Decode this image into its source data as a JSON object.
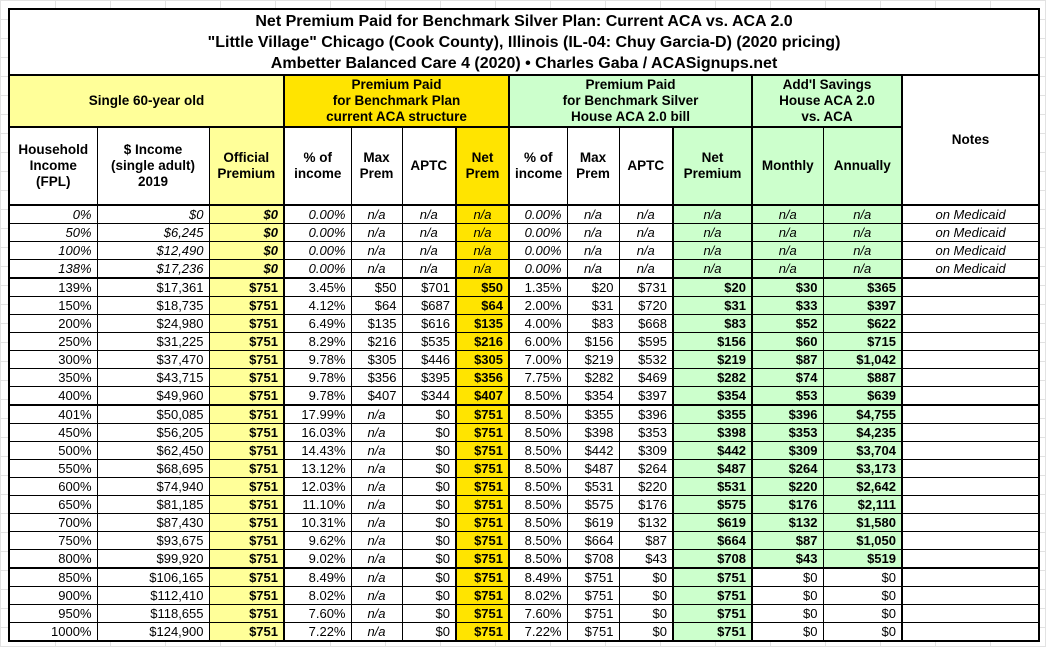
{
  "title": {
    "line1": "Net Premium Paid for Benchmark Silver Plan: Current ACA vs. ACA 2.0",
    "line2": "\"Little Village\" Chicago (Cook County), Illinois (IL-04: Chuy Garcia-D) (2020 pricing)",
    "line3": "Ambetter Balanced Care 4 (2020) • Charles Gaba / ACASignups.net"
  },
  "groups": {
    "subject": "Single 60-year old",
    "aca": "Premium Paid\nfor Benchmark Plan\ncurrent ACA structure",
    "aca2": "Premium Paid\nfor Benchmark Silver\nHouse ACA 2.0 bill",
    "savings": "Add'l Savings\nHouse ACA 2.0\nvs. ACA",
    "notes": "Notes"
  },
  "columns": [
    "Household\nIncome\n(FPL)",
    "$ Income\n(single adult)\n2019",
    "Official\nPremium",
    "% of\nincome",
    "Max\nPrem",
    "APTC",
    "Net\nPrem",
    "% of\nincome",
    "Max\nPrem",
    "APTC",
    "Net\nPremium",
    "Monthly",
    "Annually"
  ],
  "colors": {
    "pale_yellow": "#FFFF99",
    "gold": "#FFE400",
    "pale_green": "#CCFFCC",
    "border": "#000000"
  },
  "rows": [
    {
      "cells": [
        "0%",
        "$0",
        "$0",
        "0.00%",
        "n/a",
        "n/a",
        "n/a",
        "0.00%",
        "n/a",
        "n/a",
        "n/a",
        "n/a",
        "n/a",
        "on Medicaid"
      ],
      "medicaid": true
    },
    {
      "cells": [
        "50%",
        "$6,245",
        "$0",
        "0.00%",
        "n/a",
        "n/a",
        "n/a",
        "0.00%",
        "n/a",
        "n/a",
        "n/a",
        "n/a",
        "n/a",
        "on Medicaid"
      ],
      "medicaid": true
    },
    {
      "cells": [
        "100%",
        "$12,490",
        "$0",
        "0.00%",
        "n/a",
        "n/a",
        "n/a",
        "0.00%",
        "n/a",
        "n/a",
        "n/a",
        "n/a",
        "n/a",
        "on Medicaid"
      ],
      "medicaid": true
    },
    {
      "cells": [
        "138%",
        "$17,236",
        "$0",
        "0.00%",
        "n/a",
        "n/a",
        "n/a",
        "0.00%",
        "n/a",
        "n/a",
        "n/a",
        "n/a",
        "n/a",
        "on Medicaid"
      ],
      "medicaid": true,
      "sep_after": true
    },
    {
      "cells": [
        "139%",
        "$17,361",
        "$751",
        "3.45%",
        "$50",
        "$701",
        "$50",
        "1.35%",
        "$20",
        "$731",
        "$20",
        "$30",
        "$365",
        ""
      ]
    },
    {
      "cells": [
        "150%",
        "$18,735",
        "$751",
        "4.12%",
        "$64",
        "$687",
        "$64",
        "2.00%",
        "$31",
        "$720",
        "$31",
        "$33",
        "$397",
        ""
      ]
    },
    {
      "cells": [
        "200%",
        "$24,980",
        "$751",
        "6.49%",
        "$135",
        "$616",
        "$135",
        "4.00%",
        "$83",
        "$668",
        "$83",
        "$52",
        "$622",
        ""
      ]
    },
    {
      "cells": [
        "250%",
        "$31,225",
        "$751",
        "8.29%",
        "$216",
        "$535",
        "$216",
        "6.00%",
        "$156",
        "$595",
        "$156",
        "$60",
        "$715",
        ""
      ]
    },
    {
      "cells": [
        "300%",
        "$37,470",
        "$751",
        "9.78%",
        "$305",
        "$446",
        "$305",
        "7.00%",
        "$219",
        "$532",
        "$219",
        "$87",
        "$1,042",
        ""
      ]
    },
    {
      "cells": [
        "350%",
        "$43,715",
        "$751",
        "9.78%",
        "$356",
        "$395",
        "$356",
        "7.75%",
        "$282",
        "$469",
        "$282",
        "$74",
        "$887",
        ""
      ]
    },
    {
      "cells": [
        "400%",
        "$49,960",
        "$751",
        "9.78%",
        "$407",
        "$344",
        "$407",
        "8.50%",
        "$354",
        "$397",
        "$354",
        "$53",
        "$639",
        ""
      ],
      "sep_after": true
    },
    {
      "cells": [
        "401%",
        "$50,085",
        "$751",
        "17.99%",
        "n/a",
        "$0",
        "$751",
        "8.50%",
        "$355",
        "$396",
        "$355",
        "$396",
        "$4,755",
        ""
      ]
    },
    {
      "cells": [
        "450%",
        "$56,205",
        "$751",
        "16.03%",
        "n/a",
        "$0",
        "$751",
        "8.50%",
        "$398",
        "$353",
        "$398",
        "$353",
        "$4,235",
        ""
      ]
    },
    {
      "cells": [
        "500%",
        "$62,450",
        "$751",
        "14.43%",
        "n/a",
        "$0",
        "$751",
        "8.50%",
        "$442",
        "$309",
        "$442",
        "$309",
        "$3,704",
        ""
      ]
    },
    {
      "cells": [
        "550%",
        "$68,695",
        "$751",
        "13.12%",
        "n/a",
        "$0",
        "$751",
        "8.50%",
        "$487",
        "$264",
        "$487",
        "$264",
        "$3,173",
        ""
      ]
    },
    {
      "cells": [
        "600%",
        "$74,940",
        "$751",
        "12.03%",
        "n/a",
        "$0",
        "$751",
        "8.50%",
        "$531",
        "$220",
        "$531",
        "$220",
        "$2,642",
        ""
      ]
    },
    {
      "cells": [
        "650%",
        "$81,185",
        "$751",
        "11.10%",
        "n/a",
        "$0",
        "$751",
        "8.50%",
        "$575",
        "$176",
        "$575",
        "$176",
        "$2,111",
        ""
      ]
    },
    {
      "cells": [
        "700%",
        "$87,430",
        "$751",
        "10.31%",
        "n/a",
        "$0",
        "$751",
        "8.50%",
        "$619",
        "$132",
        "$619",
        "$132",
        "$1,580",
        ""
      ]
    },
    {
      "cells": [
        "750%",
        "$93,675",
        "$751",
        "9.62%",
        "n/a",
        "$0",
        "$751",
        "8.50%",
        "$664",
        "$87",
        "$664",
        "$87",
        "$1,050",
        ""
      ]
    },
    {
      "cells": [
        "800%",
        "$99,920",
        "$751",
        "9.02%",
        "n/a",
        "$0",
        "$751",
        "8.50%",
        "$708",
        "$43",
        "$708",
        "$43",
        "$519",
        ""
      ],
      "sep_after": true
    },
    {
      "cells": [
        "850%",
        "$106,165",
        "$751",
        "8.49%",
        "n/a",
        "$0",
        "$751",
        "8.49%",
        "$751",
        "$0",
        "$751",
        "$0",
        "$0",
        ""
      ],
      "no_savings": true
    },
    {
      "cells": [
        "900%",
        "$112,410",
        "$751",
        "8.02%",
        "n/a",
        "$0",
        "$751",
        "8.02%",
        "$751",
        "$0",
        "$751",
        "$0",
        "$0",
        ""
      ],
      "no_savings": true
    },
    {
      "cells": [
        "950%",
        "$118,655",
        "$751",
        "7.60%",
        "n/a",
        "$0",
        "$751",
        "7.60%",
        "$751",
        "$0",
        "$751",
        "$0",
        "$0",
        ""
      ],
      "no_savings": true
    },
    {
      "cells": [
        "1000%",
        "$124,900",
        "$751",
        "7.22%",
        "n/a",
        "$0",
        "$751",
        "7.22%",
        "$751",
        "$0",
        "$751",
        "$0",
        "$0",
        ""
      ],
      "no_savings": true
    }
  ]
}
